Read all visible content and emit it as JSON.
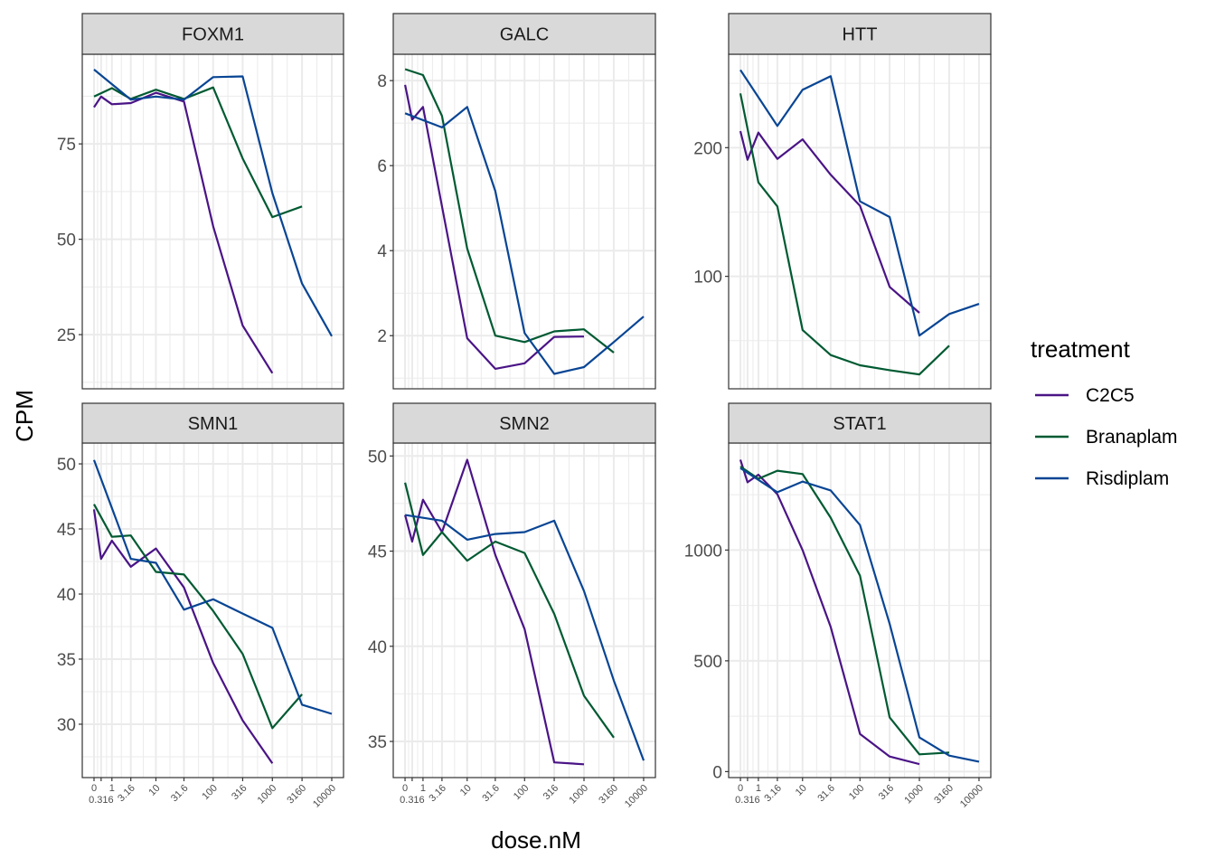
{
  "legend": {
    "title": "treatment",
    "position": "right",
    "items": [
      {
        "label": "C2C5",
        "color": "#4a1486"
      },
      {
        "label": "Branaplam",
        "color": "#005a32"
      },
      {
        "label": "Risdiplam",
        "color": "#084594"
      }
    ]
  },
  "xlabel": "dose.nM",
  "ylabel": "CPM",
  "x_tick_labels": [
    "0",
    "0.316",
    "1",
    "3.16",
    "10",
    "31.6",
    "100",
    "316",
    "1000",
    "3160",
    "10000"
  ],
  "chart_data": [
    {
      "type": "line",
      "title": "FOXM1",
      "xlabel": "dose.nM",
      "ylabel": "CPM",
      "x_scale": "log10(x+1)",
      "grid": true,
      "yticks": [
        25,
        50,
        75
      ],
      "ylim": [
        10.8,
        98.5
      ],
      "series": [
        {
          "name": "C2C5",
          "points": [
            [
              0,
              84.6
            ],
            [
              0.316,
              87.4
            ],
            [
              1,
              85.4
            ],
            [
              3.16,
              85.7
            ],
            [
              10,
              88.4
            ],
            [
              31.6,
              86.1
            ],
            [
              100,
              53.4
            ],
            [
              316,
              27.4
            ],
            [
              1000,
              14.9
            ]
          ]
        },
        {
          "name": "Branaplam",
          "points": [
            [
              0,
              87.4
            ],
            [
              1,
              89.6
            ],
            [
              3.16,
              86.8
            ],
            [
              10,
              89.2
            ],
            [
              31.6,
              86.8
            ],
            [
              100,
              89.8
            ],
            [
              316,
              71.2
            ],
            [
              1000,
              55.8
            ],
            [
              3160,
              58.6
            ]
          ]
        },
        {
          "name": "Risdiplam",
          "points": [
            [
              0,
              94.5
            ],
            [
              3.16,
              86.6
            ],
            [
              10,
              87.4
            ],
            [
              31.6,
              86.6
            ],
            [
              100,
              92.5
            ],
            [
              316,
              92.7
            ],
            [
              1000,
              62.1
            ],
            [
              3160,
              38.4
            ],
            [
              10000,
              24.6
            ]
          ]
        }
      ]
    },
    {
      "type": "line",
      "title": "GALC",
      "xlabel": "dose.nM",
      "ylabel": "CPM",
      "x_scale": "log10(x+1)",
      "grid": true,
      "yticks": [
        2,
        4,
        6,
        8
      ],
      "ylim": [
        0.75,
        8.62
      ],
      "series": [
        {
          "name": "C2C5",
          "points": [
            [
              0,
              7.9
            ],
            [
              0.316,
              7.08
            ],
            [
              1,
              7.38
            ],
            [
              10,
              1.94
            ],
            [
              31.6,
              1.22
            ],
            [
              100,
              1.35
            ],
            [
              316,
              1.97
            ],
            [
              1000,
              1.98
            ]
          ]
        },
        {
          "name": "Branaplam",
          "points": [
            [
              0,
              8.27
            ],
            [
              1,
              8.13
            ],
            [
              3.16,
              7.17
            ],
            [
              10,
              4.05
            ],
            [
              31.6,
              2.0
            ],
            [
              100,
              1.85
            ],
            [
              316,
              2.1
            ],
            [
              1000,
              2.15
            ],
            [
              3160,
              1.6
            ]
          ]
        },
        {
          "name": "Risdiplam",
          "points": [
            [
              0,
              7.23
            ],
            [
              3.16,
              6.9
            ],
            [
              10,
              7.38
            ],
            [
              31.6,
              5.4
            ],
            [
              100,
              2.06
            ],
            [
              316,
              1.1
            ],
            [
              1000,
              1.26
            ],
            [
              3160,
              1.85
            ],
            [
              10000,
              2.45
            ]
          ]
        }
      ]
    },
    {
      "type": "line",
      "title": "HTT",
      "xlabel": "dose.nM",
      "ylabel": "CPM",
      "x_scale": "log10(x+1)",
      "grid": true,
      "yticks": [
        100,
        200
      ],
      "ylim": [
        12.6,
        272.6
      ],
      "series": [
        {
          "name": "C2C5",
          "points": [
            [
              0,
              212.9
            ],
            [
              0.316,
              190.6
            ],
            [
              1,
              211.7
            ],
            [
              3.16,
              191.3
            ],
            [
              10,
              206.5
            ],
            [
              31.6,
              178.9
            ],
            [
              100,
              154.8
            ],
            [
              316,
              91.8
            ],
            [
              1000,
              71.6
            ]
          ]
        },
        {
          "name": "Branaplam",
          "points": [
            [
              0,
              242.2
            ],
            [
              1,
              173
            ],
            [
              3.16,
              154.3
            ],
            [
              10,
              58.3
            ],
            [
              31.6,
              38.8
            ],
            [
              100,
              30.9
            ],
            [
              316,
              27.1
            ],
            [
              1000,
              23.8
            ],
            [
              3160,
              46.1
            ]
          ]
        },
        {
          "name": "Risdiplam",
          "points": [
            [
              0,
              260.4
            ],
            [
              3.16,
              216.9
            ],
            [
              10,
              245
            ],
            [
              31.6,
              255.5
            ],
            [
              100,
              158.3
            ],
            [
              316,
              146.1
            ],
            [
              1000,
              54
            ],
            [
              3160,
              70.7
            ],
            [
              10000,
              78.6
            ]
          ]
        }
      ]
    },
    {
      "type": "line",
      "title": "SMN1",
      "xlabel": "dose.nM",
      "ylabel": "CPM",
      "x_scale": "log10(x+1)",
      "grid": true,
      "yticks": [
        30,
        35,
        40,
        45,
        50
      ],
      "ylim": [
        25.9,
        51.6
      ],
      "series": [
        {
          "name": "C2C5",
          "points": [
            [
              0,
              46.5
            ],
            [
              0.316,
              42.7
            ],
            [
              1,
              44.1
            ],
            [
              3.16,
              42.1
            ],
            [
              10,
              43.5
            ],
            [
              31.6,
              40.5
            ],
            [
              100,
              34.7
            ],
            [
              316,
              30.3
            ],
            [
              1000,
              27.0
            ]
          ]
        },
        {
          "name": "Branaplam",
          "points": [
            [
              0,
              46.9
            ],
            [
              1,
              44.4
            ],
            [
              3.16,
              44.5
            ],
            [
              10,
              41.7
            ],
            [
              31.6,
              41.5
            ],
            [
              100,
              38.7
            ],
            [
              316,
              35.4
            ],
            [
              1000,
              29.7
            ],
            [
              3160,
              32.3
            ]
          ]
        },
        {
          "name": "Risdiplam",
          "points": [
            [
              0,
              50.3
            ],
            [
              3.16,
              42.7
            ],
            [
              10,
              42.4
            ],
            [
              31.6,
              38.8
            ],
            [
              100,
              39.6
            ],
            [
              316,
              38.5
            ],
            [
              1000,
              37.4
            ],
            [
              3160,
              31.5
            ],
            [
              10000,
              30.8
            ]
          ]
        }
      ]
    },
    {
      "type": "line",
      "title": "SMN2",
      "xlabel": "dose.nM",
      "ylabel": "CPM",
      "x_scale": "log10(x+1)",
      "grid": true,
      "yticks": [
        35,
        40,
        45,
        50
      ],
      "ylim": [
        33.1,
        50.68
      ],
      "series": [
        {
          "name": "C2C5",
          "points": [
            [
              0,
              46.9
            ],
            [
              0.316,
              45.5
            ],
            [
              1,
              47.7
            ],
            [
              3.16,
              46.0
            ],
            [
              10,
              49.8
            ],
            [
              31.6,
              44.8
            ],
            [
              100,
              40.9
            ],
            [
              316,
              33.9
            ],
            [
              1000,
              33.8
            ]
          ]
        },
        {
          "name": "Branaplam",
          "points": [
            [
              0,
              48.6
            ],
            [
              1,
              44.8
            ],
            [
              3.16,
              46.0
            ],
            [
              10,
              44.5
            ],
            [
              31.6,
              45.5
            ],
            [
              100,
              44.9
            ],
            [
              316,
              41.7
            ],
            [
              1000,
              37.4
            ],
            [
              3160,
              35.2
            ]
          ]
        },
        {
          "name": "Risdiplam",
          "points": [
            [
              0,
              46.9
            ],
            [
              3.16,
              46.6
            ],
            [
              10,
              45.6
            ],
            [
              31.6,
              45.9
            ],
            [
              100,
              46.0
            ],
            [
              316,
              46.6
            ],
            [
              1000,
              42.9
            ],
            [
              3160,
              38.2
            ],
            [
              10000,
              34.0
            ]
          ]
        }
      ]
    },
    {
      "type": "line",
      "title": "STAT1",
      "xlabel": "dose.nM",
      "ylabel": "CPM",
      "x_scale": "log10(x+1)",
      "grid": true,
      "yticks": [
        0,
        500,
        1000
      ],
      "ylim": [
        -27,
        1483
      ],
      "series": [
        {
          "name": "C2C5",
          "points": [
            [
              0,
              1408
            ],
            [
              0.316,
              1306
            ],
            [
              1,
              1340
            ],
            [
              3.16,
              1252
            ],
            [
              10,
              1000
            ],
            [
              31.6,
              653
            ],
            [
              100,
              170
            ],
            [
              316,
              68
            ],
            [
              1000,
              34
            ]
          ]
        },
        {
          "name": "Branaplam",
          "points": [
            [
              0,
              1377
            ],
            [
              1,
              1322
            ],
            [
              3.16,
              1358
            ],
            [
              10,
              1343
            ],
            [
              31.6,
              1146
            ],
            [
              100,
              884
            ],
            [
              316,
              245
            ],
            [
              1000,
              78
            ],
            [
              3160,
              86
            ]
          ]
        },
        {
          "name": "Risdiplam",
          "points": [
            [
              0,
              1370
            ],
            [
              3.16,
              1261
            ],
            [
              10,
              1309
            ],
            [
              31.6,
              1269
            ],
            [
              100,
              1113
            ],
            [
              316,
              667
            ],
            [
              1000,
              154
            ],
            [
              3160,
              72
            ],
            [
              10000,
              45
            ]
          ]
        }
      ]
    }
  ]
}
